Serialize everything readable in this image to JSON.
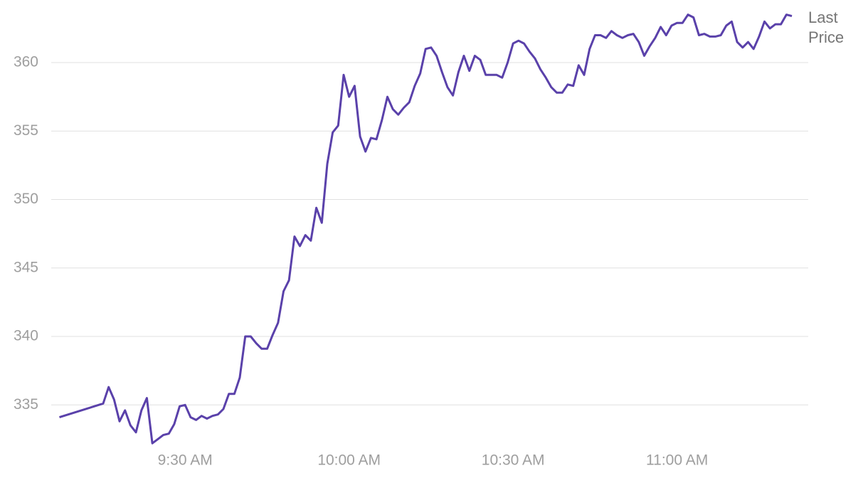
{
  "chart_data": {
    "type": "line",
    "x": [
      547,
      555,
      556,
      557,
      558,
      559,
      560,
      561,
      562,
      563,
      564,
      565,
      566,
      567,
      568,
      569,
      570,
      571,
      572,
      573,
      574,
      575,
      576,
      577,
      578,
      579,
      580,
      581,
      582,
      583,
      584,
      585,
      586,
      587,
      588,
      589,
      590,
      591,
      592,
      593,
      594,
      595,
      596,
      597,
      598,
      599,
      600,
      601,
      602,
      603,
      604,
      605,
      606,
      607,
      608,
      609,
      610,
      611,
      612,
      613,
      614,
      615,
      616,
      617,
      618,
      619,
      620,
      621,
      622,
      623,
      624,
      625,
      626,
      627,
      628,
      629,
      630,
      631,
      632,
      633,
      634,
      635,
      636,
      637,
      638,
      639,
      640,
      641,
      642,
      643,
      644,
      645,
      646,
      647,
      648,
      649,
      650,
      651,
      652,
      653,
      654,
      655,
      656,
      657,
      658,
      659,
      660,
      661,
      662,
      663,
      664,
      665,
      666,
      667,
      668,
      669,
      670,
      671,
      672,
      673,
      674,
      675,
      676,
      677,
      678,
      679,
      680,
      681
    ],
    "series": [
      {
        "name": "Last Price",
        "color": "#5a41aa",
        "values": [
          334.1,
          335.1,
          336.3,
          335.4,
          333.8,
          334.6,
          333.5,
          333.0,
          334.6,
          335.5,
          332.2,
          332.5,
          332.8,
          332.9,
          333.6,
          334.9,
          335.0,
          334.1,
          333.9,
          334.2,
          334.0,
          334.2,
          334.3,
          334.7,
          335.8,
          335.8,
          337.0,
          340.0,
          340.0,
          339.5,
          339.1,
          339.1,
          340.1,
          341.0,
          343.3,
          344.1,
          347.3,
          346.6,
          347.4,
          347.0,
          349.4,
          348.3,
          352.6,
          354.9,
          355.4,
          359.1,
          357.5,
          358.3,
          354.6,
          353.5,
          354.5,
          354.4,
          355.8,
          357.5,
          356.6,
          356.2,
          356.7,
          357.1,
          358.3,
          359.2,
          361.0,
          361.1,
          360.5,
          359.3,
          358.2,
          357.6,
          359.3,
          360.5,
          359.4,
          360.5,
          360.2,
          359.1,
          359.1,
          359.1,
          358.9,
          360.0,
          361.4,
          361.6,
          361.4,
          360.8,
          360.3,
          359.5,
          358.9,
          358.2,
          357.8,
          357.8,
          358.4,
          358.3,
          359.8,
          359.1,
          361.0,
          362.0,
          362.0,
          361.8,
          362.3,
          362.0,
          361.8,
          362.0,
          362.1,
          361.5,
          360.5,
          361.2,
          361.8,
          362.6,
          362.0,
          362.7,
          362.9,
          362.9,
          363.5,
          363.3,
          362.0,
          362.1,
          361.9,
          361.9,
          362.0,
          362.7,
          363.0,
          361.5,
          361.1,
          361.5,
          361.0,
          361.9,
          363.0,
          362.5,
          362.8,
          362.8,
          363.5,
          363.4
        ]
      }
    ],
    "xlim": [
      545.5,
      684
    ],
    "xticks": [
      {
        "value": 570,
        "label": "9:30 AM"
      },
      {
        "value": 600,
        "label": "10:00 AM"
      },
      {
        "value": 630,
        "label": "10:30 AM"
      },
      {
        "value": 660,
        "label": "11:00 AM"
      }
    ],
    "ylim": [
      332,
      364
    ],
    "yticks": [
      335,
      340,
      345,
      350,
      355,
      360
    ],
    "grid": true
  }
}
